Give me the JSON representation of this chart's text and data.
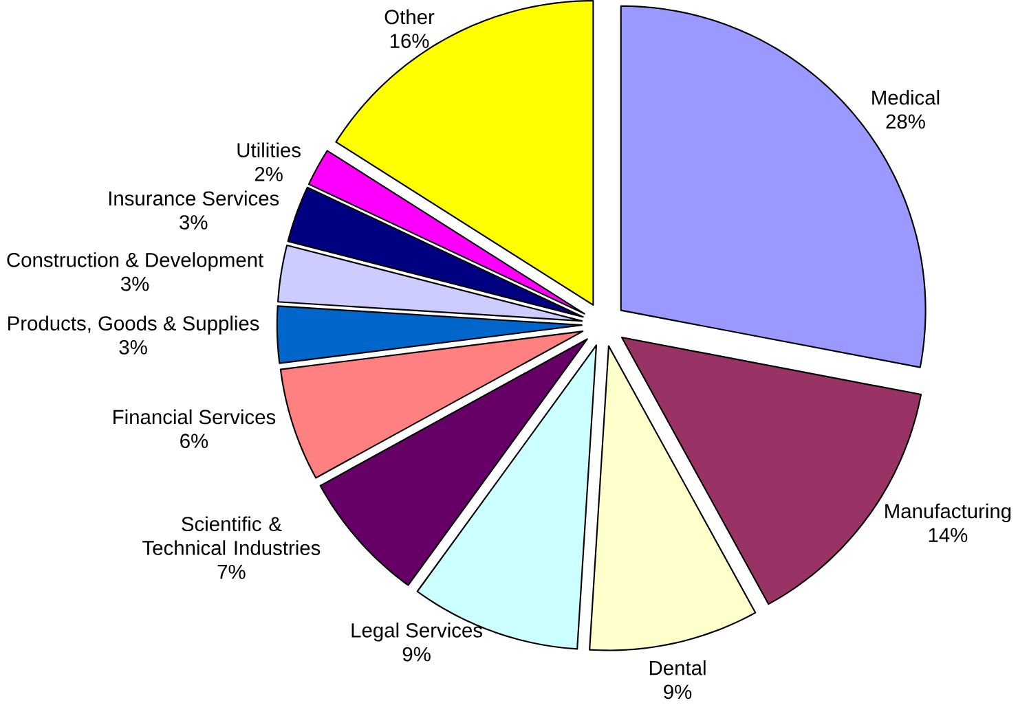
{
  "chart_data": {
    "type": "pie",
    "categories": [
      "Medical",
      "Manufacturing",
      "Dental",
      "Legal Services",
      "Scientific & Technical Industries",
      "Financial Services",
      "Products, Goods & Supplies",
      "Construction & Development",
      "Insurance Services",
      "Utilities",
      "Other"
    ],
    "values": [
      28,
      14,
      9,
      9,
      7,
      6,
      3,
      3,
      3,
      2,
      16
    ],
    "value_labels": [
      "28%",
      "14%",
      "9%",
      "9%",
      "7%",
      "6%",
      "3%",
      "3%",
      "3%",
      "2%",
      "16%"
    ],
    "colors": [
      "#9999ff",
      "#993366",
      "#ffffcc",
      "#ccffff",
      "#660066",
      "#ff8080",
      "#0066cc",
      "#ccccff",
      "#000080",
      "#ff00ff",
      "#ffff00"
    ]
  }
}
